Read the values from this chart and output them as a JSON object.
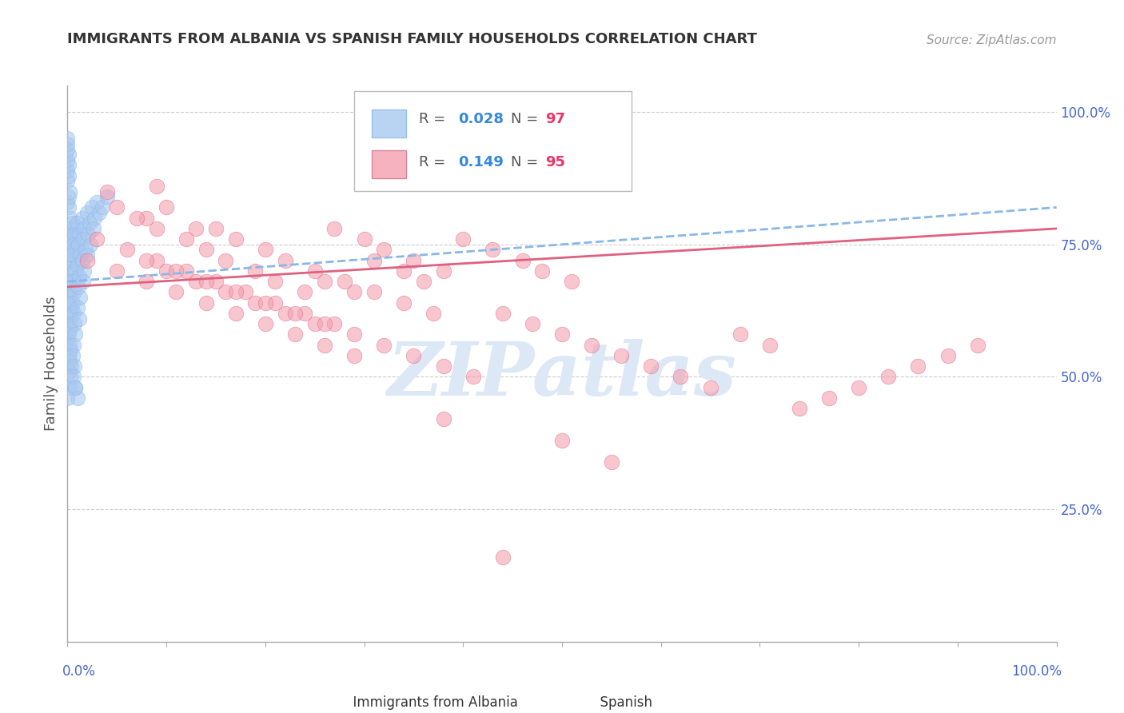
{
  "title": "IMMIGRANTS FROM ALBANIA VS SPANISH FAMILY HOUSEHOLDS CORRELATION CHART",
  "source": "Source: ZipAtlas.com",
  "ylabel": "Family Households",
  "legend_entries": [
    {
      "label": "Immigrants from Albania",
      "color": "#a8c8f0",
      "border": "#88aad0",
      "R": "0.028",
      "N": "97"
    },
    {
      "label": "Spanish",
      "color": "#f4a0b0",
      "border": "#d07088",
      "R": "0.149",
      "N": "95"
    }
  ],
  "blue_scatter_x": [
    0.002,
    0.001,
    0.003,
    0.001,
    0.0,
    0.002,
    0.004,
    0.001,
    0.003,
    0.002,
    0.001,
    0.0,
    0.003,
    0.002,
    0.001,
    0.004,
    0.002,
    0.001,
    0.003,
    0.002,
    0.001,
    0.0,
    0.002,
    0.003,
    0.001,
    0.002,
    0.004,
    0.001,
    0.003,
    0.002,
    0.005,
    0.006,
    0.007,
    0.005,
    0.008,
    0.006,
    0.007,
    0.005,
    0.006,
    0.007,
    0.008,
    0.006,
    0.005,
    0.007,
    0.006,
    0.008,
    0.005,
    0.007,
    0.006,
    0.005,
    0.01,
    0.012,
    0.011,
    0.013,
    0.01,
    0.012,
    0.011,
    0.013,
    0.01,
    0.012,
    0.015,
    0.017,
    0.016,
    0.018,
    0.015,
    0.017,
    0.016,
    0.02,
    0.022,
    0.021,
    0.023,
    0.02,
    0.025,
    0.027,
    0.026,
    0.03,
    0.032,
    0.035,
    0.04,
    0.01,
    0.008,
    0.0,
    0.001,
    0.002,
    0.0,
    0.001,
    0.0,
    0.001,
    0.0,
    0.001,
    0.0,
    0.0,
    0.0,
    0.0
  ],
  "blue_scatter_y": [
    0.78,
    0.82,
    0.8,
    0.77,
    0.75,
    0.74,
    0.73,
    0.72,
    0.7,
    0.69,
    0.68,
    0.67,
    0.66,
    0.65,
    0.64,
    0.63,
    0.62,
    0.61,
    0.6,
    0.59,
    0.58,
    0.57,
    0.56,
    0.55,
    0.54,
    0.53,
    0.52,
    0.51,
    0.5,
    0.48,
    0.78,
    0.76,
    0.74,
    0.72,
    0.7,
    0.68,
    0.66,
    0.64,
    0.62,
    0.6,
    0.58,
    0.56,
    0.54,
    0.52,
    0.5,
    0.48,
    0.79,
    0.77,
    0.75,
    0.73,
    0.79,
    0.77,
    0.75,
    0.73,
    0.71,
    0.69,
    0.67,
    0.65,
    0.63,
    0.61,
    0.8,
    0.78,
    0.76,
    0.74,
    0.72,
    0.7,
    0.68,
    0.81,
    0.79,
    0.77,
    0.75,
    0.73,
    0.82,
    0.8,
    0.78,
    0.83,
    0.81,
    0.82,
    0.84,
    0.46,
    0.48,
    0.83,
    0.84,
    0.85,
    0.87,
    0.88,
    0.89,
    0.9,
    0.91,
    0.92,
    0.93,
    0.94,
    0.95,
    0.46
  ],
  "pink_scatter_x": [
    0.04,
    0.09,
    0.08,
    0.13,
    0.1,
    0.15,
    0.17,
    0.2,
    0.22,
    0.25,
    0.27,
    0.3,
    0.32,
    0.35,
    0.38,
    0.4,
    0.43,
    0.46,
    0.48,
    0.51,
    0.05,
    0.07,
    0.09,
    0.12,
    0.14,
    0.16,
    0.19,
    0.21,
    0.24,
    0.26,
    0.29,
    0.31,
    0.34,
    0.36,
    0.1,
    0.13,
    0.16,
    0.19,
    0.22,
    0.25,
    0.28,
    0.31,
    0.34,
    0.37,
    0.03,
    0.06,
    0.09,
    0.12,
    0.15,
    0.18,
    0.21,
    0.24,
    0.27,
    0.02,
    0.05,
    0.08,
    0.11,
    0.14,
    0.17,
    0.2,
    0.23,
    0.26,
    0.29,
    0.08,
    0.11,
    0.14,
    0.17,
    0.2,
    0.23,
    0.26,
    0.29,
    0.32,
    0.35,
    0.38,
    0.41,
    0.44,
    0.47,
    0.5,
    0.53,
    0.56,
    0.59,
    0.62,
    0.65,
    0.68,
    0.71,
    0.74,
    0.77,
    0.8,
    0.83,
    0.86,
    0.89,
    0.92,
    0.5,
    0.55,
    0.38,
    0.44
  ],
  "pink_scatter_y": [
    0.85,
    0.86,
    0.8,
    0.78,
    0.82,
    0.78,
    0.76,
    0.74,
    0.72,
    0.7,
    0.78,
    0.76,
    0.74,
    0.72,
    0.7,
    0.76,
    0.74,
    0.72,
    0.7,
    0.68,
    0.82,
    0.8,
    0.78,
    0.76,
    0.74,
    0.72,
    0.7,
    0.68,
    0.66,
    0.68,
    0.66,
    0.72,
    0.7,
    0.68,
    0.7,
    0.68,
    0.66,
    0.64,
    0.62,
    0.6,
    0.68,
    0.66,
    0.64,
    0.62,
    0.76,
    0.74,
    0.72,
    0.7,
    0.68,
    0.66,
    0.64,
    0.62,
    0.6,
    0.72,
    0.7,
    0.68,
    0.66,
    0.64,
    0.62,
    0.6,
    0.58,
    0.56,
    0.54,
    0.72,
    0.7,
    0.68,
    0.66,
    0.64,
    0.62,
    0.6,
    0.58,
    0.56,
    0.54,
    0.52,
    0.5,
    0.62,
    0.6,
    0.58,
    0.56,
    0.54,
    0.52,
    0.5,
    0.48,
    0.58,
    0.56,
    0.44,
    0.46,
    0.48,
    0.5,
    0.52,
    0.54,
    0.56,
    0.38,
    0.34,
    0.42,
    0.16
  ],
  "blue_line_x": [
    0.0,
    1.0
  ],
  "blue_line_y": [
    0.68,
    0.82
  ],
  "pink_line_x": [
    0.0,
    1.0
  ],
  "pink_line_y": [
    0.67,
    0.78
  ],
  "ytick_values": [
    0.25,
    0.5,
    0.75,
    1.0
  ],
  "ytick_labels": [
    "25.0%",
    "50.0%",
    "75.0%",
    "100.0%"
  ],
  "xtick_minor": [
    0.0,
    0.1,
    0.2,
    0.3,
    0.4,
    0.5,
    0.6,
    0.7,
    0.8,
    0.9,
    1.0
  ],
  "xlim": [
    0.0,
    1.0
  ],
  "ylim": [
    0.0,
    1.05
  ],
  "blue_color": "#a8c8f0",
  "pink_color": "#f4a0b0",
  "blue_line_color": "#88b8e8",
  "pink_line_color": "#e06080",
  "grid_color": "#cccccc",
  "title_color": "#333333",
  "source_color": "#999999",
  "axis_tick_color": "#4466cc",
  "watermark_text": "ZIPatlas",
  "watermark_color": "#dce8f5",
  "legend_R_color": "#3388dd",
  "legend_N_color": "#ee3366"
}
